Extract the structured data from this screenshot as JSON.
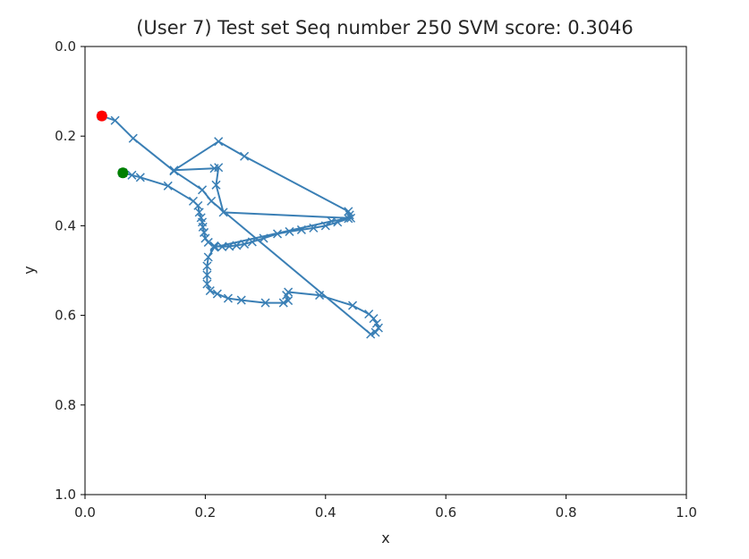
{
  "chart_data": {
    "type": "line",
    "title": "(User 7) Test set Seq number 250     SVM score: 0.3046",
    "xlabel": "x",
    "ylabel": "y",
    "xlim": [
      0.0,
      1.0
    ],
    "ylim": [
      1.0,
      0.0
    ],
    "y_inverted": true,
    "grid": false,
    "xticks": [
      "0.0",
      "0.2",
      "0.4",
      "0.6",
      "0.8",
      "1.0"
    ],
    "yticks": [
      "0.0",
      "0.2",
      "0.4",
      "0.6",
      "0.8",
      "1.0"
    ],
    "line_color": "#3a7fb5",
    "marker": "x",
    "series": [
      {
        "points": [
          [
            0.063,
            0.282
          ],
          [
            0.078,
            0.287
          ],
          [
            0.092,
            0.292
          ],
          [
            0.138,
            0.311
          ],
          [
            0.18,
            0.345
          ],
          [
            0.188,
            0.355
          ],
          [
            0.19,
            0.37
          ],
          [
            0.193,
            0.382
          ],
          [
            0.195,
            0.392
          ],
          [
            0.196,
            0.403
          ],
          [
            0.198,
            0.415
          ],
          [
            0.2,
            0.428
          ],
          [
            0.205,
            0.437
          ],
          [
            0.215,
            0.445
          ],
          [
            0.228,
            0.447
          ],
          [
            0.24,
            0.446
          ],
          [
            0.252,
            0.444
          ],
          [
            0.265,
            0.441
          ],
          [
            0.278,
            0.436
          ],
          [
            0.297,
            0.428
          ],
          [
            0.32,
            0.418
          ],
          [
            0.34,
            0.413
          ],
          [
            0.36,
            0.409
          ],
          [
            0.38,
            0.405
          ],
          [
            0.4,
            0.4
          ],
          [
            0.42,
            0.392
          ],
          [
            0.438,
            0.384
          ],
          [
            0.44,
            0.376
          ],
          [
            0.438,
            0.368
          ],
          [
            0.265,
            0.245
          ],
          [
            0.222,
            0.212
          ],
          [
            0.148,
            0.276
          ],
          [
            0.215,
            0.272
          ],
          [
            0.222,
            0.27
          ],
          [
            0.218,
            0.309
          ],
          [
            0.23,
            0.37
          ],
          [
            0.442,
            0.383
          ],
          [
            0.41,
            0.39
          ],
          [
            0.215,
            0.448
          ],
          [
            0.205,
            0.47
          ],
          [
            0.203,
            0.49
          ],
          [
            0.203,
            0.51
          ],
          [
            0.203,
            0.53
          ],
          [
            0.208,
            0.545
          ],
          [
            0.22,
            0.552
          ],
          [
            0.238,
            0.562
          ],
          [
            0.26,
            0.566
          ],
          [
            0.3,
            0.572
          ],
          [
            0.33,
            0.572
          ],
          [
            0.338,
            0.567
          ],
          [
            0.335,
            0.555
          ],
          [
            0.338,
            0.548
          ],
          [
            0.39,
            0.555
          ],
          [
            0.445,
            0.578
          ],
          [
            0.472,
            0.597
          ],
          [
            0.48,
            0.607
          ],
          [
            0.485,
            0.618
          ],
          [
            0.488,
            0.628
          ],
          [
            0.483,
            0.638
          ],
          [
            0.475,
            0.642
          ],
          [
            0.21,
            0.345
          ],
          [
            0.195,
            0.32
          ],
          [
            0.148,
            0.278
          ],
          [
            0.08,
            0.205
          ],
          [
            0.05,
            0.165
          ],
          [
            0.028,
            0.155
          ]
        ]
      }
    ],
    "start_marker": {
      "x": 0.063,
      "y": 0.282,
      "color": "#008000"
    },
    "end_marker": {
      "x": 0.028,
      "y": 0.155,
      "color": "#ff0000"
    }
  }
}
